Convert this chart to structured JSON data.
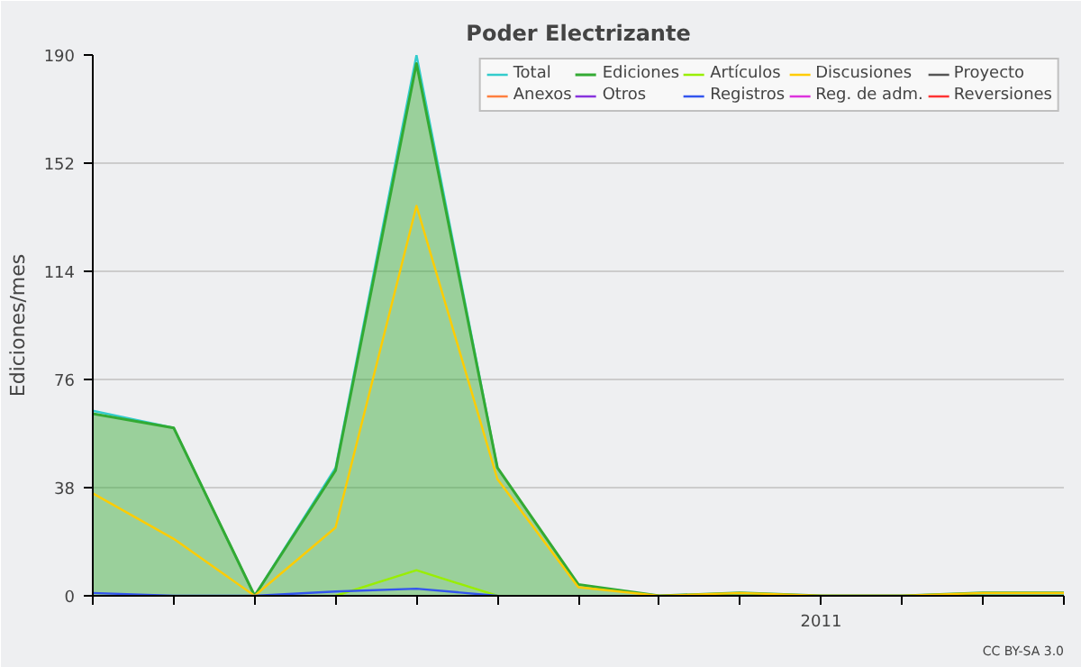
{
  "chart_data": {
    "type": "line",
    "title": "Poder Electrizante",
    "ylabel": "Ediciones/mes",
    "categories": [
      null,
      null,
      null,
      null,
      null,
      null,
      null,
      null,
      null,
      "2011",
      null,
      null,
      null
    ],
    "series": [
      {
        "name": "Total",
        "color": "#33cccc",
        "values": [
          65,
          59,
          0,
          45,
          190,
          45,
          null,
          null,
          null,
          null,
          null,
          null,
          null
        ]
      },
      {
        "name": "Ediciones",
        "type": "area",
        "color": "#33aa33",
        "values": [
          64,
          59,
          0,
          44,
          187,
          45,
          4,
          0,
          1,
          0,
          0,
          1,
          1
        ]
      },
      {
        "name": "Artículos",
        "color": "#99ee00",
        "values": [
          null,
          null,
          null,
          0,
          9,
          0,
          null,
          null,
          null,
          null,
          null,
          null,
          null
        ]
      },
      {
        "name": "Discusiones",
        "color": "#ffcc00",
        "values": [
          36,
          20,
          0,
          24,
          137,
          41,
          3,
          0,
          1,
          0,
          0,
          1,
          1
        ]
      },
      {
        "name": "Proyecto",
        "color": "#555555",
        "values": [
          null,
          null,
          null,
          null,
          null,
          null,
          null,
          null,
          null,
          null,
          null,
          null,
          null
        ]
      },
      {
        "name": "Anexos",
        "color": "#ff7f3f",
        "values": [
          null,
          null,
          null,
          null,
          null,
          null,
          null,
          null,
          null,
          null,
          null,
          null,
          null
        ]
      },
      {
        "name": "Otros",
        "color": "#8833dd",
        "values": [
          null,
          null,
          null,
          null,
          null,
          null,
          null,
          null,
          null,
          null,
          null,
          null,
          null
        ]
      },
      {
        "name": "Registros",
        "color": "#3355ee",
        "values": [
          1,
          0,
          0,
          1.5,
          2.5,
          0,
          null,
          null,
          null,
          null,
          null,
          null,
          null
        ]
      },
      {
        "name": "Reg. de adm.",
        "color": "#dd33dd",
        "values": [
          null,
          null,
          null,
          null,
          null,
          null,
          null,
          null,
          null,
          null,
          null,
          null,
          null
        ]
      },
      {
        "name": "Reversiones",
        "color": "#ff3333",
        "values": [
          null,
          null,
          null,
          null,
          null,
          null,
          null,
          null,
          null,
          null,
          null,
          null,
          null
        ]
      }
    ],
    "ylim": [
      0,
      190
    ],
    "yticks": [
      0,
      38,
      76,
      114,
      152,
      190
    ],
    "grid": "y",
    "legend": "top right",
    "annotations": [
      "CC BY-SA 3.0"
    ]
  }
}
